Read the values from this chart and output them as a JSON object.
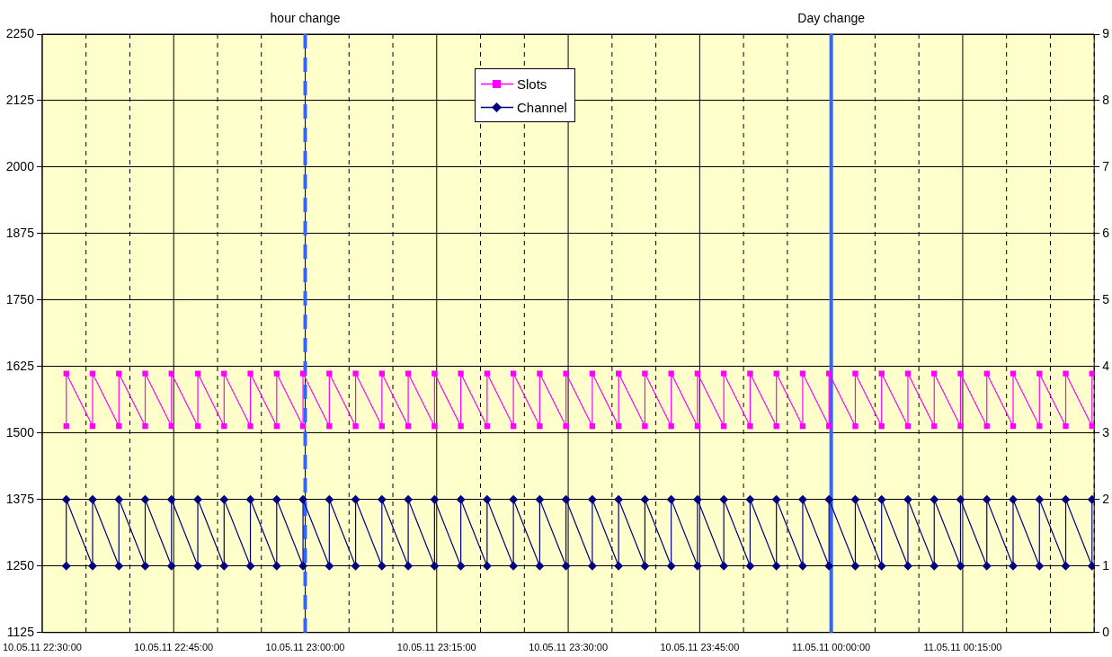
{
  "chart_data": {
    "type": "line",
    "x": [
      "--05-10T22:32:45",
      "--05-10T22:32:45",
      "--05-10T22:35:45",
      "--05-10T22:35:45",
      "--05-10T22:38:45",
      "--05-10T22:38:45",
      "--05-10T22:41:45",
      "--05-10T22:41:45",
      "--05-10T22:44:45",
      "--05-10T22:44:45",
      "--05-10T22:47:45",
      "--05-10T22:47:45",
      "--05-10T22:50:45",
      "--05-10T22:50:45",
      "--05-10T22:53:45",
      "--05-10T22:53:45",
      "--05-10T22:56:45",
      "--05-10T22:56:45",
      "--05-10T22:59:45",
      "--05-10T22:59:45",
      "--05-10T23:02:45",
      "--05-10T23:02:45",
      "--05-10T23:05:45",
      "--05-10T23:05:45",
      "--05-10T23:08:45",
      "--05-10T23:08:45",
      "--05-10T23:11:45",
      "--05-10T23:11:45",
      "--05-10T23:14:45",
      "--05-10T23:14:45",
      "--05-10T23:17:45",
      "--05-10T23:17:45",
      "--05-10T23:20:45",
      "--05-10T23:20:45",
      "--05-10T23:23:45",
      "--05-10T23:23:45",
      "--05-10T23:26:45",
      "--05-10T23:26:45",
      "--05-10T23:29:45",
      "--05-10T23:29:45",
      "--05-10T23:32:45",
      "--05-10T23:32:45",
      "--05-10T23:35:45",
      "--05-10T23:35:45",
      "--05-10T23:38:45",
      "--05-10T23:38:45",
      "--05-10T23:41:45",
      "--05-10T23:41:45",
      "--05-10T23:44:45",
      "--05-10T23:44:45",
      "--05-10T23:47:45",
      "--05-10T23:47:45",
      "--05-10T23:50:45",
      "--05-10T23:50:45",
      "--05-10T23:53:45",
      "--05-10T23:53:45",
      "--05-10T23:56:45",
      "--05-10T23:56:45",
      "--05-10T23:59:45",
      "--05-10T23:59:45",
      "--05-11T00:02:45",
      "--05-11T00:02:45",
      "--05-11T00:05:45",
      "--05-11T00:05:45",
      "--05-11T00:08:45",
      "--05-11T00:08:45",
      "--05-11T00:11:45",
      "--05-11T00:11:45",
      "--05-11T00:14:45",
      "--05-11T00:14:45",
      "--05-11T00:17:45",
      "--05-11T00:17:45",
      "--05-11T00:20:45",
      "--05-11T00:20:45",
      "--05-11T00:23:45",
      "--05-11T00:23:45",
      "--05-11T00:26:45",
      "--05-11T00:26:45",
      "--05-11T00:29:45",
      "--05-11T00:29:45"
    ],
    "series": [
      {
        "name": "Slots",
        "color": "#ff00ff",
        "marker": "square",
        "values": [
          1513,
          1612,
          1513,
          1612,
          1513,
          1612,
          1513,
          1612,
          1513,
          1612,
          1513,
          1612,
          1513,
          1612,
          1513,
          1612,
          1513,
          1612,
          1513,
          1612,
          1513,
          1612,
          1513,
          1612,
          1513,
          1612,
          1513,
          1612,
          1513,
          1612,
          1513,
          1612,
          1513,
          1612,
          1513,
          1612,
          1513,
          1612,
          1513,
          1612,
          1513,
          1612,
          1513,
          1612,
          1513,
          1612,
          1513,
          1612,
          1513,
          1612,
          1513,
          1612,
          1513,
          1612,
          1513,
          1612,
          1513,
          1612,
          1513,
          1612,
          1513,
          1612,
          1513,
          1612,
          1513,
          1612,
          1513,
          1612,
          1513,
          1612,
          1513,
          1612,
          1513,
          1612,
          1513,
          1612,
          1513,
          1612,
          1513,
          1612
        ]
      },
      {
        "name": "Channel",
        "color": "#000080",
        "marker": "diamond",
        "axis": "y2",
        "values": [
          1,
          2,
          1,
          2,
          1,
          2,
          1,
          2,
          1,
          2,
          1,
          2,
          1,
          2,
          1,
          2,
          1,
          2,
          1,
          2,
          1,
          2,
          1,
          2,
          1,
          2,
          1,
          2,
          1,
          2,
          1,
          2,
          1,
          2,
          1,
          2,
          1,
          2,
          1,
          2,
          1,
          2,
          1,
          2,
          1,
          2,
          1,
          2,
          1,
          2,
          1,
          2,
          1,
          2,
          1,
          2,
          1,
          2,
          1,
          2,
          1,
          2,
          1,
          2,
          1,
          2,
          1,
          2,
          1,
          2,
          1,
          2,
          1,
          2,
          1,
          2,
          1,
          2,
          1,
          2
        ]
      }
    ],
    "xlim": [
      "--05-10T22:30",
      "--05-11T00:30"
    ],
    "xticks": [
      {
        "value": "--05-10T22:30",
        "label": "10.05.11 22:30:00"
      },
      {
        "value": "--05-10T22:35",
        "label": null
      },
      {
        "value": "--05-10T22:40",
        "label": null
      },
      {
        "value": "--05-10T22:45",
        "label": "10.05.11 22:45:00"
      },
      {
        "value": "--05-10T22:50",
        "label": null
      },
      {
        "value": "--05-10T22:55",
        "label": null
      },
      {
        "value": "--05-10T23:00",
        "label": "10.05.11 23:00:00"
      },
      {
        "value": "--05-10T23:05",
        "label": null
      },
      {
        "value": "--05-10T23:10",
        "label": null
      },
      {
        "value": "--05-10T23:15",
        "label": "10.05.11 23:15:00"
      },
      {
        "value": "--05-10T23:20",
        "label": null
      },
      {
        "value": "--05-10T23:25",
        "label": null
      },
      {
        "value": "--05-10T23:30",
        "label": "10.05.11 23:30:00"
      },
      {
        "value": "--05-10T23:35",
        "label": null
      },
      {
        "value": "--05-10T23:40",
        "label": null
      },
      {
        "value": "--05-10T23:45",
        "label": "10.05.11 23:45:00"
      },
      {
        "value": "--05-10T23:50",
        "label": null
      },
      {
        "value": "--05-10T23:55",
        "label": null
      },
      {
        "value": "--05-11T00:00",
        "label": "11.05.11 00:00:00"
      },
      {
        "value": "--05-11T00:05",
        "label": null
      },
      {
        "value": "--05-11T00:10",
        "label": null
      },
      {
        "value": "--05-11T00:15",
        "label": "11.05.11 00:15:00"
      },
      {
        "value": "--05-11T00:20",
        "label": null
      },
      {
        "value": "--05-11T00:25",
        "label": null
      },
      {
        "value": "--05-11T00:30",
        "label": null
      }
    ],
    "ylim": [
      1125,
      2250
    ],
    "yticks": [
      1125,
      1250,
      1375,
      1500,
      1625,
      1750,
      1875,
      2000,
      2125,
      2250
    ],
    "y2lim": [
      0,
      9
    ],
    "y2ticks": [
      0,
      1,
      2,
      3,
      4,
      5,
      6,
      7,
      8,
      9
    ],
    "ref_lines": [
      {
        "axis": "x",
        "value": "--05-10T23:00",
        "label": "hour change",
        "color": "#3366ff",
        "line_style": "dashed"
      },
      {
        "axis": "x",
        "value": "--05-11T00:00",
        "label": "Day change",
        "color": "#3366ff",
        "line_style": "solid"
      }
    ],
    "grid": true,
    "legend": "top"
  }
}
